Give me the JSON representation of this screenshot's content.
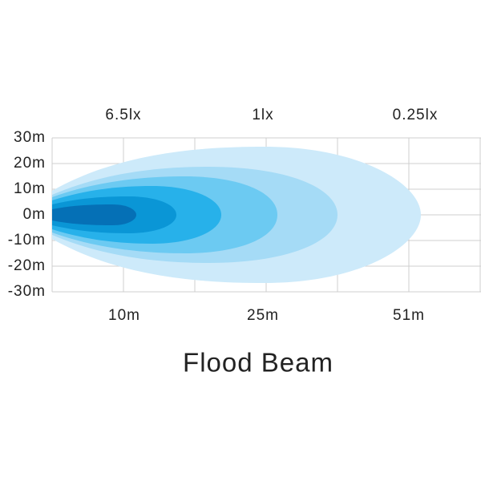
{
  "lux_labels": [
    "6.5lx",
    "1lx",
    "0.25lx"
  ],
  "y_axis_labels": [
    "30m",
    "20m",
    "10m",
    "0m",
    "-10m",
    "-20m",
    "-30m"
  ],
  "distance_labels": [
    "10m",
    "25m",
    "51m"
  ],
  "title": "Flood Beam"
}
